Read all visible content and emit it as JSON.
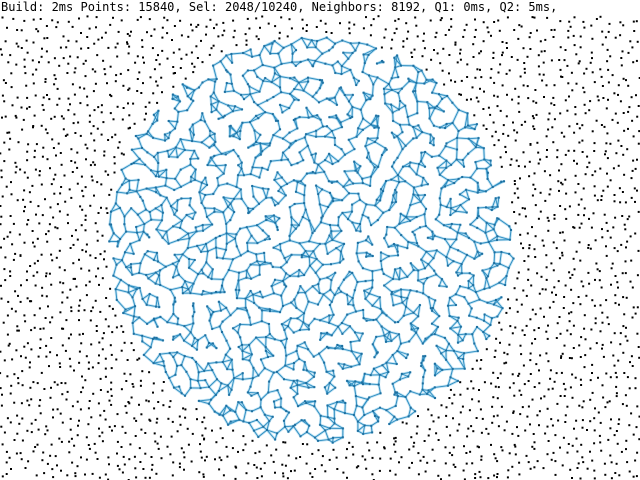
{
  "status": {
    "text": "Build: 2ms Points: 15840, Sel: 2048/10240, Neighbors: 8192, Q1: 0ms, Q2: 5ms,"
  },
  "stats": {
    "build_ms": 2,
    "points": 15840,
    "selected": 2048,
    "selection_capacity": 10240,
    "neighbors": 8192,
    "q1_ms": 0,
    "q2_ms": 5
  },
  "colors": {
    "background": "#ffffff",
    "point": "#000000",
    "selected_point": "#1f6f9f",
    "neighbor_line": "#2a8bbf",
    "neighbor_glow": "#a8d8f0",
    "text": "#000000"
  }
}
